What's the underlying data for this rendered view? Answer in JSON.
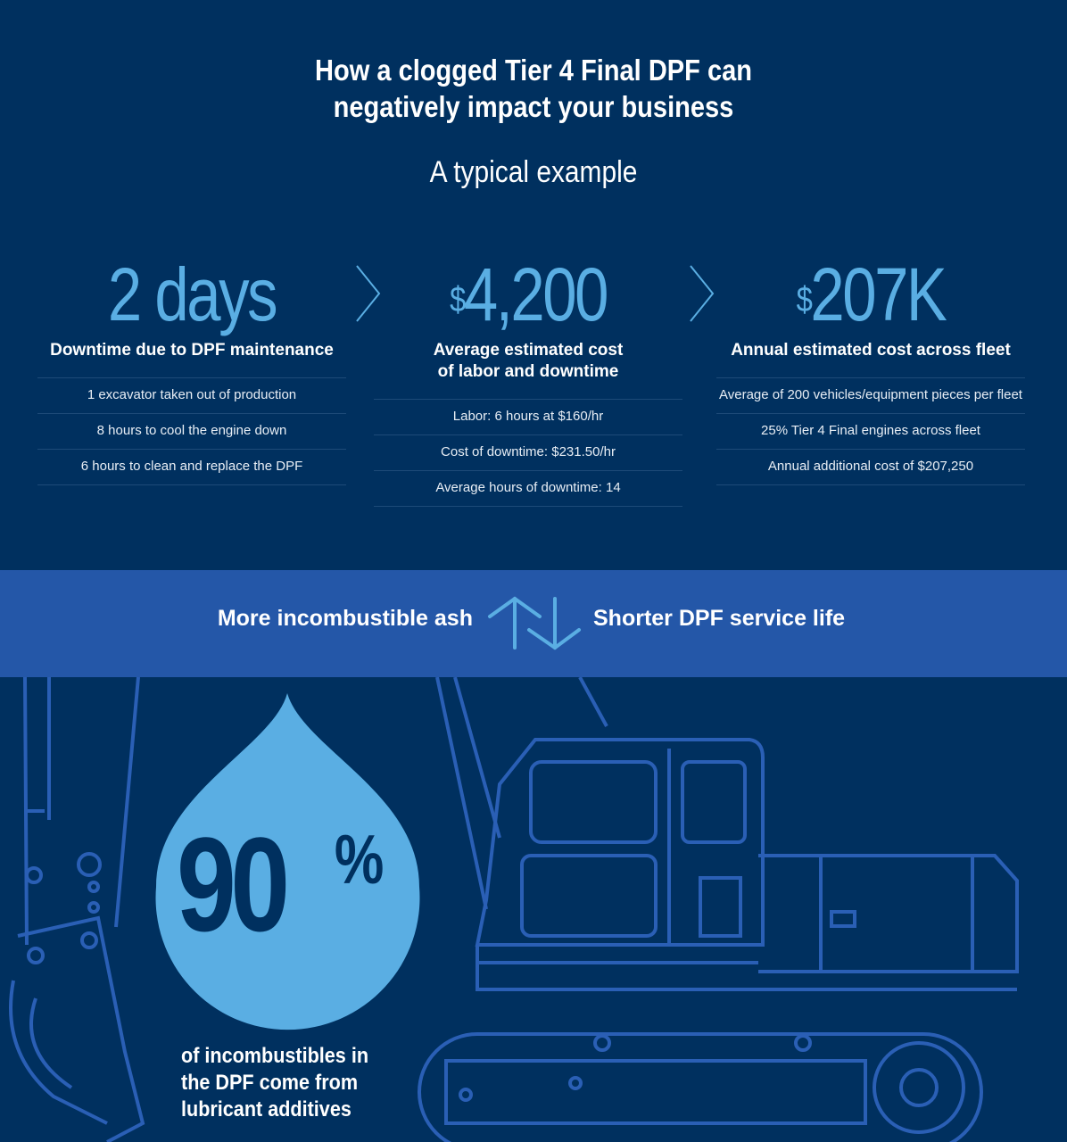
{
  "header": {
    "title_line1": "How a clogged Tier 4 Final DPF can",
    "title_line2": "negatively impact your business",
    "subtitle": "A typical example"
  },
  "columns": [
    {
      "value": "2 days",
      "label": "Downtime due to DPF maintenance",
      "items": [
        "1 excavator taken out of production",
        "8 hours to cool the engine down",
        "6 hours to clean and replace the DPF"
      ]
    },
    {
      "currency": "$",
      "value": "4,200",
      "label_line1": "Average estimated cost",
      "label_line2": "of labor and downtime",
      "items": [
        "Labor: 6 hours at $160/hr",
        "Cost of downtime: $231.50/hr",
        "Average hours of downtime: 14"
      ]
    },
    {
      "currency": "$",
      "value": "207K",
      "label": "Annual estimated cost across fleet",
      "items": [
        "Average of 200 vehicles/equipment pieces per fleet",
        "25% Tier 4 Final engines across fleet",
        "Annual additional cost of $207,250"
      ]
    }
  ],
  "band": {
    "left": "More incombustible ash",
    "right": "Shorter DPF service life",
    "icon": "up-down-arrows-icon"
  },
  "stat": {
    "value": "90",
    "unit": "%",
    "caption_line1": "of incombustibles in",
    "caption_line2": "the DPF come from",
    "caption_line3": "lubricant additives"
  },
  "colors": {
    "background": "#00305f",
    "accent": "#5aaee3",
    "band": "#2457a8",
    "outline": "#2a5fb5"
  }
}
